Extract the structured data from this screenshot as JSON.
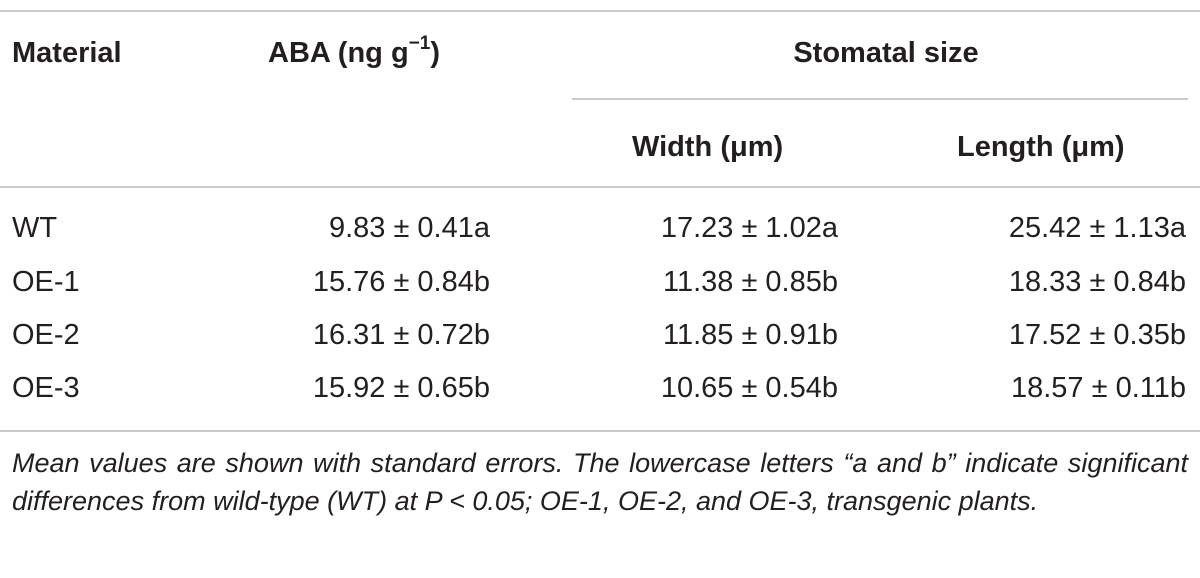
{
  "table": {
    "headers": {
      "material": "Material",
      "aba_label": "ABA (ng g",
      "aba_sup": "−1",
      "aba_close": ")",
      "stomatal_size": "Stomatal size",
      "width": "Width (μm)",
      "length": "Length (μm)"
    },
    "rows": [
      {
        "material": "WT",
        "aba": "9.83 ± 0.41a",
        "width": "17.23 ± 1.02a",
        "length": "25.42 ± 1.13a"
      },
      {
        "material": "OE-1",
        "aba": "15.76 ± 0.84b",
        "width": "11.38 ± 0.85b",
        "length": "18.33 ± 0.84b"
      },
      {
        "material": "OE-2",
        "aba": "16.31 ± 0.72b",
        "width": "11.85 ± 0.91b",
        "length": "17.52 ± 0.35b"
      },
      {
        "material": "OE-3",
        "aba": "15.92 ± 0.65b",
        "width": "10.65 ± 0.54b",
        "length": "18.57 ± 0.11b"
      }
    ],
    "footnote": "Mean values are shown with standard errors. The lowercase letters “a and b” indicate significant differences from wild-type (WT) at P < 0.05; OE-1, OE-2, and OE-3, transgenic plants."
  }
}
